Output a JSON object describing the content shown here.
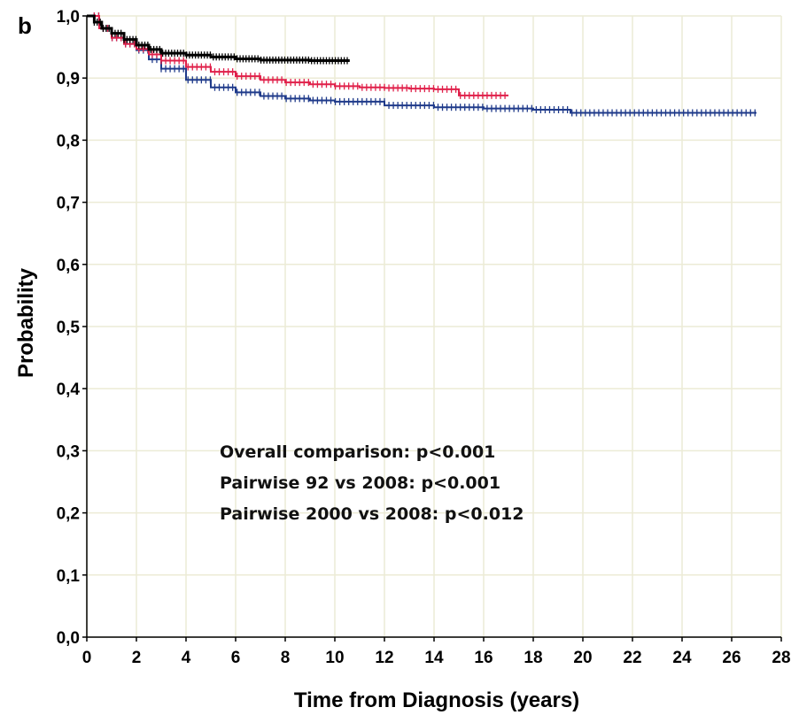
{
  "chart_data": {
    "type": "line",
    "panel_label": "b",
    "xlabel": "Time from Diagnosis (years)",
    "ylabel": "Probability",
    "xlim": [
      0,
      28
    ],
    "ylim": [
      0,
      1.0
    ],
    "x_ticks": [
      "0",
      "2",
      "4",
      "6",
      "8",
      "10",
      "12",
      "14",
      "16",
      "18",
      "20",
      "22",
      "24",
      "26",
      "28"
    ],
    "y_ticks": [
      "0,0",
      "0,1",
      "0,2",
      "0,3",
      "0,4",
      "0,5",
      "0,6",
      "0,7",
      "0,8",
      "0,9",
      "1,0"
    ],
    "grid": true,
    "annotations": [
      "Overall comparison: p<0.001",
      "Pairwise 92 vs 2008: p<0.001",
      "Pairwise 2000 vs 2008: p<0.012"
    ],
    "series": [
      {
        "color": "#1f3a8a",
        "x": [
          0,
          0.5,
          1,
          1.5,
          2,
          2.5,
          3,
          4,
          5,
          6,
          7,
          8,
          9,
          10,
          12,
          14,
          16,
          18,
          19.5,
          22,
          24,
          26,
          27
        ],
        "y": [
          1.0,
          0.98,
          0.965,
          0.955,
          0.945,
          0.93,
          0.915,
          0.897,
          0.885,
          0.877,
          0.871,
          0.867,
          0.864,
          0.862,
          0.856,
          0.853,
          0.851,
          0.849,
          0.844,
          0.844,
          0.844,
          0.844,
          0.844
        ]
      },
      {
        "color": "#e0204a",
        "x": [
          0,
          0.5,
          1,
          1.5,
          2,
          2.5,
          3,
          4,
          5,
          6,
          7,
          8,
          9,
          10,
          11,
          12,
          13,
          14,
          14.5,
          15,
          15.5,
          16,
          16.5,
          17
        ],
        "y": [
          1.0,
          0.98,
          0.965,
          0.955,
          0.947,
          0.938,
          0.928,
          0.918,
          0.91,
          0.903,
          0.897,
          0.893,
          0.89,
          0.887,
          0.885,
          0.884,
          0.883,
          0.882,
          0.882,
          0.872,
          0.872,
          0.872,
          0.872,
          0.872
        ]
      },
      {
        "color": "#000000",
        "x": [
          0,
          0.3,
          0.6,
          1,
          1.5,
          2,
          2.5,
          3,
          4,
          5,
          6,
          7,
          8,
          9,
          10,
          10.6
        ],
        "y": [
          1.0,
          0.99,
          0.98,
          0.972,
          0.962,
          0.953,
          0.946,
          0.94,
          0.937,
          0.934,
          0.931,
          0.929,
          0.929,
          0.928,
          0.928,
          0.928
        ]
      }
    ]
  }
}
